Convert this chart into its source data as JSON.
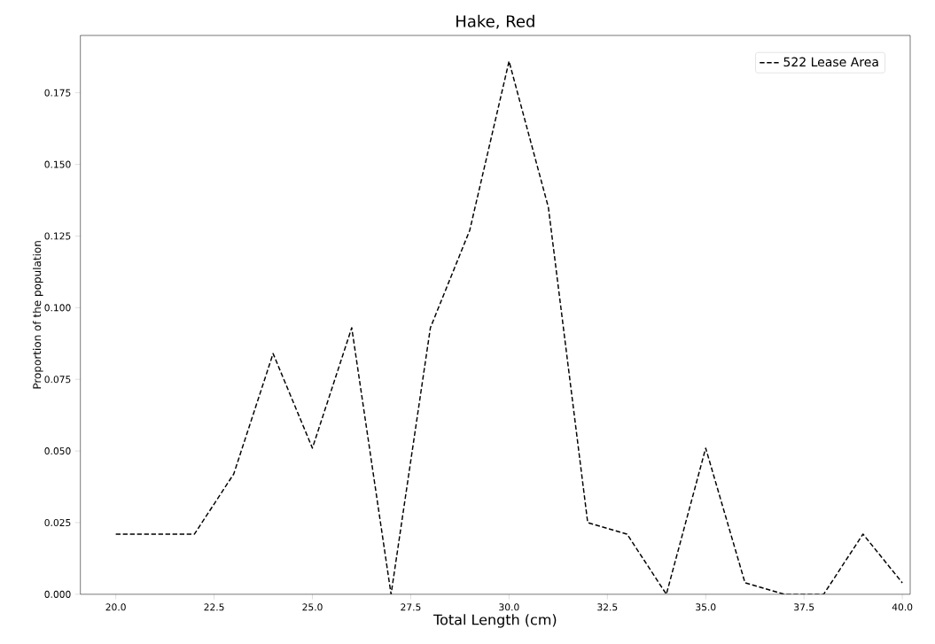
{
  "chart_data": {
    "type": "line",
    "title": "Hake, Red",
    "xlabel": "Total Length (cm)",
    "ylabel": "Proportion of the population",
    "x": [
      20,
      21,
      22,
      23,
      24,
      25,
      26,
      27,
      28,
      29,
      30,
      31,
      32,
      33,
      34,
      35,
      36,
      37,
      38,
      39,
      40
    ],
    "series": [
      {
        "name": "522 Lease Area",
        "color": "#000000",
        "line_style": "dashed",
        "values": [
          0.021,
          0.021,
          0.021,
          0.042,
          0.084,
          0.051,
          0.093,
          0,
          0.093,
          0.127,
          0.186,
          0.135,
          0.025,
          0.021,
          0,
          0.051,
          0.004,
          0,
          0,
          0.021,
          0.004
        ]
      }
    ],
    "xlim": [
      19.1,
      40.2
    ],
    "ylim": [
      0,
      0.195
    ],
    "xticks": [
      {
        "value": 20,
        "label": "20.0"
      },
      {
        "value": 22.5,
        "label": "22.5"
      },
      {
        "value": 25,
        "label": "25.0"
      },
      {
        "value": 27.5,
        "label": "27.5"
      },
      {
        "value": 30,
        "label": "30.0"
      },
      {
        "value": 32.5,
        "label": "32.5"
      },
      {
        "value": 35,
        "label": "35.0"
      },
      {
        "value": 37.5,
        "label": "37.5"
      },
      {
        "value": 40,
        "label": "40.0"
      }
    ],
    "yticks": [
      {
        "value": 0,
        "label": "0.000"
      },
      {
        "value": 0.025,
        "label": "0.025"
      },
      {
        "value": 0.05,
        "label": "0.050"
      },
      {
        "value": 0.075,
        "label": "0.075"
      },
      {
        "value": 0.1,
        "label": "0.100"
      },
      {
        "value": 0.125,
        "label": "0.125"
      },
      {
        "value": 0.15,
        "label": "0.150"
      },
      {
        "value": 0.175,
        "label": "0.175"
      }
    ],
    "grid": false,
    "legend": "top right",
    "marker": "none"
  }
}
